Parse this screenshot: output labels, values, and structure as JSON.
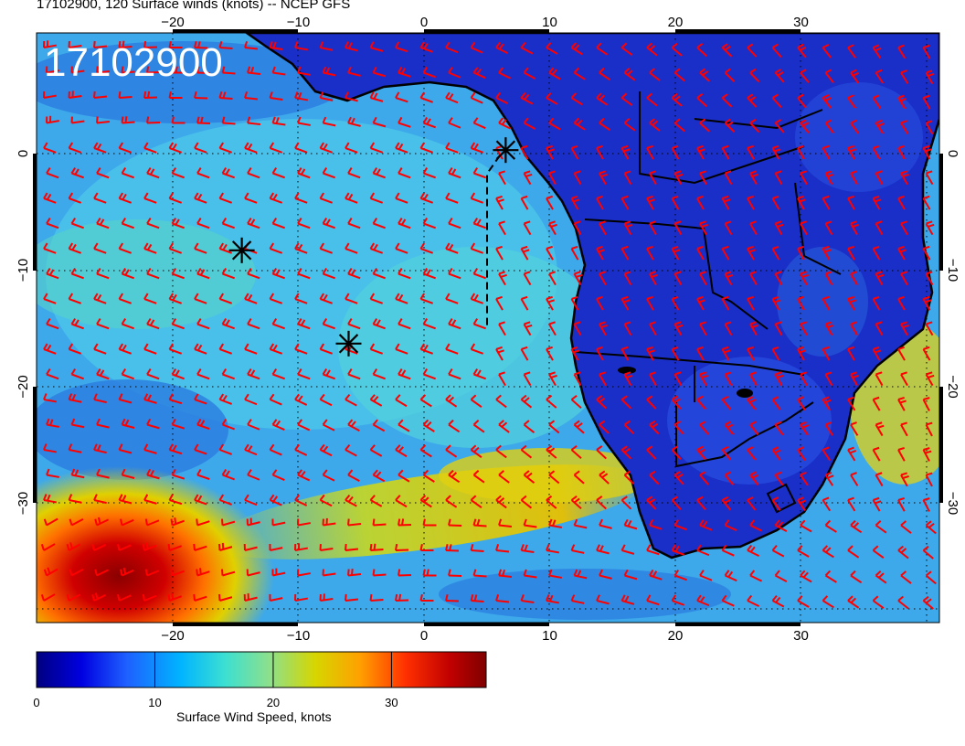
{
  "title": "17102900, 120 Surface winds (knots) -- NCEP GFS",
  "stamp": "17102900",
  "axes": {
    "lon_top": [
      "−20",
      "−10",
      "0",
      "10",
      "20",
      "30"
    ],
    "lon_bottom": [
      "−20",
      "−10",
      "0",
      "10",
      "20",
      "30"
    ],
    "lat_left": [
      "0",
      "−10",
      "−20",
      "−30"
    ],
    "lat_right": [
      "0",
      "−10",
      "−20",
      "−30"
    ]
  },
  "colorbar": {
    "label": "Surface Wind Speed, knots",
    "ticks": [
      "0",
      "10",
      "20",
      "30"
    ],
    "range": [
      0,
      38
    ],
    "colors": [
      "#00007f",
      "#0000e0",
      "#1e60ff",
      "#00b4ff",
      "#3ce0d0",
      "#8ee08a",
      "#d6d600",
      "#ffa000",
      "#ff3000",
      "#c00000",
      "#7f0000"
    ]
  },
  "markers": [
    {
      "name": "storm-marker-1",
      "lon": 6.5,
      "lat": 0.3
    },
    {
      "name": "storm-marker-2",
      "lon": -14.5,
      "lat": -8.3
    },
    {
      "name": "storm-marker-3",
      "lon": -6.0,
      "lat": -16.3
    }
  ],
  "colors": {
    "barb": "#ff0000",
    "land": "#1a2ec8",
    "coast": "#000000"
  }
}
